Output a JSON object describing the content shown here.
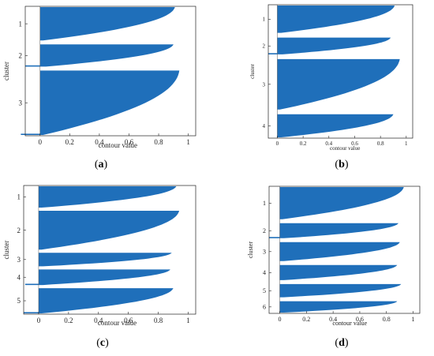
{
  "chart_data": [
    {
      "id": "a",
      "panel_label": "(a)",
      "type": "bar",
      "orientation": "horizontal",
      "xlabel": "contour value",
      "ylabel": "cluster",
      "xlim": [
        -0.1,
        1.05
      ],
      "xticks": [
        {
          "v": 0,
          "t": "0"
        },
        {
          "v": 0.2,
          "t": "0.2"
        },
        {
          "v": 0.4,
          "t": "0.4"
        },
        {
          "v": 0.6,
          "t": "0.6"
        },
        {
          "v": 0.8,
          "t": "0.8"
        },
        {
          "v": 1,
          "t": "1"
        }
      ],
      "grid": false,
      "clusters": [
        {
          "label": "1",
          "size": 30,
          "max": 0.91,
          "min": 0.02,
          "neg": 0
        },
        {
          "label": "2",
          "size": 20,
          "max": 0.9,
          "min": 0.04,
          "neg": -0.1
        },
        {
          "label": "3",
          "size": 58,
          "max": 0.94,
          "min": 0.02,
          "neg": -0.13
        }
      ]
    },
    {
      "id": "b",
      "panel_label": "(b)",
      "type": "bar",
      "orientation": "horizontal",
      "xlabel": "contour value",
      "ylabel": "cluster",
      "xlim": [
        -0.07,
        1.05
      ],
      "xticks": [
        {
          "v": 0,
          "t": "0"
        },
        {
          "v": 0.2,
          "t": "0.2"
        },
        {
          "v": 0.4,
          "t": "0.4"
        },
        {
          "v": 0.6,
          "t": "0.6"
        },
        {
          "v": 0.8,
          "t": "0.8"
        },
        {
          "v": 1,
          "t": "1"
        }
      ],
      "grid": false,
      "clusters": [
        {
          "label": "1",
          "size": 26,
          "max": 0.91,
          "min": 0.03,
          "neg": 0
        },
        {
          "label": "2",
          "size": 16,
          "max": 0.88,
          "min": 0.04,
          "neg": -0.07
        },
        {
          "label": "3",
          "size": 48,
          "max": 0.95,
          "min": 0.02,
          "neg": 0
        },
        {
          "label": "4",
          "size": 22,
          "max": 0.9,
          "min": 0.03,
          "neg": 0
        }
      ]
    },
    {
      "id": "c",
      "panel_label": "(c)",
      "type": "bar",
      "orientation": "horizontal",
      "xlabel": "contour value",
      "ylabel": "cluster",
      "xlim": [
        -0.1,
        1.05
      ],
      "xticks": [
        {
          "v": 0,
          "t": "0"
        },
        {
          "v": 0.2,
          "t": "0.2"
        },
        {
          "v": 0.4,
          "t": "0.4"
        },
        {
          "v": 0.6,
          "t": "0.6"
        },
        {
          "v": 0.8,
          "t": "0.8"
        },
        {
          "v": 1,
          "t": "1"
        }
      ],
      "grid": false,
      "clusters": [
        {
          "label": "1",
          "size": 22,
          "max": 0.92,
          "min": 0.02,
          "neg": 0
        },
        {
          "label": "2",
          "size": 40,
          "max": 0.94,
          "min": 0.02,
          "neg": 0
        },
        {
          "label": "3",
          "size": 14,
          "max": 0.89,
          "min": 0.03,
          "neg": 0
        },
        {
          "label": "4",
          "size": 16,
          "max": 0.88,
          "min": 0.03,
          "neg": -0.09
        },
        {
          "label": "5",
          "size": 26,
          "max": 0.9,
          "min": 0.02,
          "neg": -0.1
        }
      ]
    },
    {
      "id": "d",
      "panel_label": "(d)",
      "type": "bar",
      "orientation": "horizontal",
      "xlabel": "contour value",
      "ylabel": "cluster",
      "xlim": [
        -0.08,
        1.05
      ],
      "xticks": [
        {
          "v": 0,
          "t": "0"
        },
        {
          "v": 0.2,
          "t": "0.2"
        },
        {
          "v": 0.4,
          "t": "0.4"
        },
        {
          "v": 0.6,
          "t": "0.6"
        },
        {
          "v": 0.8,
          "t": "0.8"
        },
        {
          "v": 1,
          "t": "1"
        }
      ],
      "grid": false,
      "clusters": [
        {
          "label": "1",
          "size": 34,
          "max": 0.93,
          "min": 0.02,
          "neg": 0
        },
        {
          "label": "2",
          "size": 16,
          "max": 0.89,
          "min": 0.03,
          "neg": -0.08
        },
        {
          "label": "3",
          "size": 20,
          "max": 0.9,
          "min": 0.03,
          "neg": 0
        },
        {
          "label": "4",
          "size": 16,
          "max": 0.88,
          "min": 0.03,
          "neg": 0
        },
        {
          "label": "5",
          "size": 14,
          "max": 0.91,
          "min": 0.03,
          "neg": 0
        },
        {
          "label": "6",
          "size": 12,
          "max": 0.88,
          "min": 0.03,
          "neg": 0
        }
      ]
    }
  ],
  "colors": {
    "bar": "#1f6fba",
    "axis": "#222222"
  }
}
